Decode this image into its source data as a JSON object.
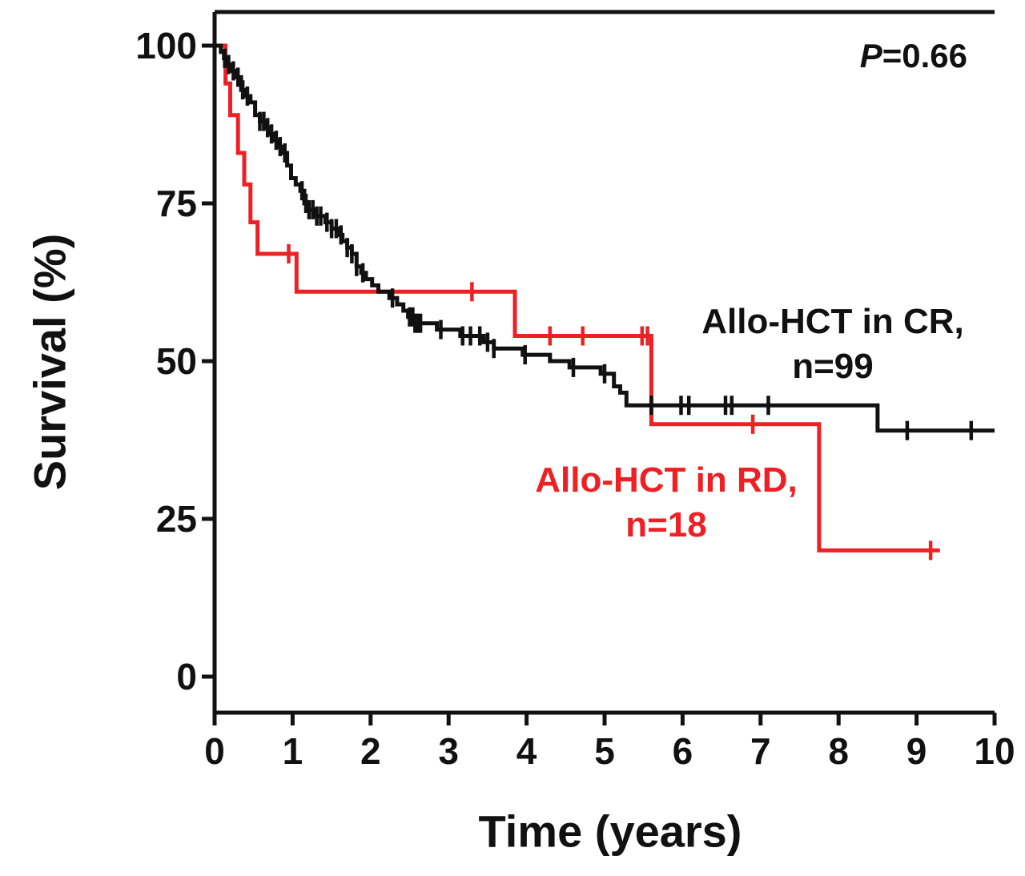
{
  "figure": {
    "p_italic": "P",
    "p_rest": "=0.66"
  },
  "chart_data": {
    "type": "line",
    "variant": "kaplan-meier-step",
    "title": "",
    "xlabel": "Time (years)",
    "ylabel": "Survival (%)",
    "xlim": [
      0,
      10
    ],
    "ylim": [
      0,
      100
    ],
    "xticks": [
      0,
      1,
      2,
      3,
      4,
      5,
      6,
      7,
      8,
      9,
      10
    ],
    "yticks": [
      0,
      25,
      50,
      75,
      100
    ],
    "grid": false,
    "annotation": "P=0.66",
    "legend_position": "inline-annotations",
    "axis_color": "#111111",
    "series": [
      {
        "name": "Allo-HCT in CR, n=99",
        "label_lines": [
          "Allo-HCT in CR,",
          "n=99"
        ],
        "n": 99,
        "color": "#111111",
        "steps": [
          [
            0,
            100
          ],
          [
            0.08,
            99
          ],
          [
            0.12,
            98
          ],
          [
            0.16,
            97
          ],
          [
            0.22,
            96
          ],
          [
            0.28,
            95
          ],
          [
            0.34,
            93
          ],
          [
            0.4,
            92
          ],
          [
            0.46,
            91
          ],
          [
            0.52,
            89
          ],
          [
            0.58,
            88
          ],
          [
            0.64,
            87
          ],
          [
            0.7,
            86
          ],
          [
            0.76,
            85
          ],
          [
            0.82,
            84
          ],
          [
            0.88,
            83
          ],
          [
            0.93,
            81
          ],
          [
            0.98,
            79
          ],
          [
            1.04,
            78
          ],
          [
            1.1,
            77
          ],
          [
            1.15,
            75
          ],
          [
            1.2,
            74
          ],
          [
            1.28,
            73
          ],
          [
            1.42,
            72
          ],
          [
            1.5,
            71
          ],
          [
            1.58,
            70
          ],
          [
            1.64,
            69
          ],
          [
            1.7,
            68
          ],
          [
            1.76,
            67
          ],
          [
            1.82,
            65
          ],
          [
            1.88,
            64
          ],
          [
            1.94,
            63
          ],
          [
            2.02,
            62
          ],
          [
            2.1,
            61
          ],
          [
            2.24,
            60
          ],
          [
            2.34,
            59
          ],
          [
            2.42,
            58
          ],
          [
            2.48,
            57
          ],
          [
            2.56,
            56
          ],
          [
            2.85,
            55
          ],
          [
            3.15,
            54
          ],
          [
            3.45,
            53
          ],
          [
            3.58,
            52
          ],
          [
            3.95,
            51
          ],
          [
            4.3,
            50
          ],
          [
            4.55,
            49
          ],
          [
            4.95,
            48
          ],
          [
            5.12,
            46
          ],
          [
            5.2,
            45
          ],
          [
            5.28,
            43
          ],
          [
            8.5,
            39
          ]
        ],
        "end_time": 10,
        "censor_times": [
          0.13,
          0.18,
          0.24,
          0.3,
          0.36,
          0.42,
          0.58,
          0.63,
          0.68,
          0.73,
          0.79,
          0.84,
          0.9,
          1.12,
          1.17,
          1.21,
          1.26,
          1.31,
          1.36,
          1.44,
          1.5,
          1.56,
          1.62,
          1.7,
          1.76,
          1.82,
          1.9,
          2.28,
          2.5,
          2.54,
          2.57,
          2.6,
          2.64,
          2.9,
          3.18,
          3.28,
          3.4,
          3.5,
          3.58,
          3.98,
          4.6,
          5.0,
          5.6,
          5.98,
          6.08,
          6.55,
          6.63,
          7.1,
          8.88,
          9.7
        ]
      },
      {
        "name": "Allo-HCT in RD, n=18",
        "label_lines": [
          "Allo-HCT in RD,",
          "n=18"
        ],
        "n": 18,
        "color": "#ee2023",
        "steps": [
          [
            0,
            100
          ],
          [
            0.14,
            94
          ],
          [
            0.2,
            89
          ],
          [
            0.3,
            83
          ],
          [
            0.38,
            78
          ],
          [
            0.46,
            72
          ],
          [
            0.55,
            67
          ],
          [
            1.05,
            61
          ],
          [
            3.85,
            54
          ],
          [
            5.6,
            40
          ],
          [
            7.75,
            20
          ]
        ],
        "end_time": 9.3,
        "censor_times": [
          0.95,
          3.3,
          4.3,
          4.72,
          5.48,
          5.55,
          6.9,
          9.18
        ]
      }
    ]
  }
}
